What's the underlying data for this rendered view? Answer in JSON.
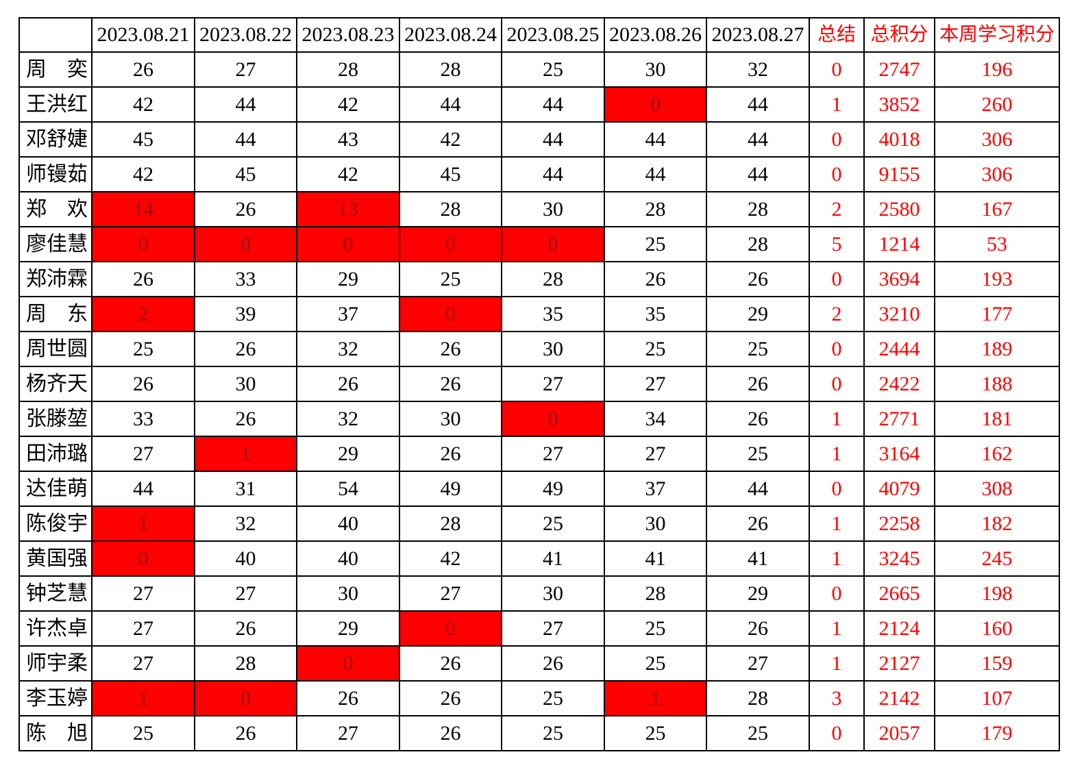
{
  "table": {
    "corner": "",
    "date_headers": [
      "2023.08.21",
      "2023.08.22",
      "2023.08.23",
      "2023.08.24",
      "2023.08.25",
      "2023.08.26",
      "2023.08.27"
    ],
    "summary_header": "总结",
    "total_header": "总积分",
    "week_header": "本周学习积分",
    "rows": [
      {
        "name": "周　奕",
        "daily": [
          26,
          27,
          28,
          28,
          25,
          30,
          32
        ],
        "red": [],
        "summary": 0,
        "total": 2747,
        "week": 196
      },
      {
        "name": "王洪红",
        "daily": [
          42,
          44,
          42,
          44,
          44,
          0,
          44
        ],
        "red": [
          5
        ],
        "summary": 1,
        "total": 3852,
        "week": 260
      },
      {
        "name": "邓舒婕",
        "daily": [
          45,
          44,
          43,
          42,
          44,
          44,
          44
        ],
        "red": [],
        "summary": 0,
        "total": 4018,
        "week": 306
      },
      {
        "name": "师镘茹",
        "daily": [
          42,
          45,
          42,
          45,
          44,
          44,
          44
        ],
        "red": [],
        "summary": 0,
        "total": 9155,
        "week": 306
      },
      {
        "name": "郑　欢",
        "daily": [
          14,
          26,
          13,
          28,
          30,
          28,
          28
        ],
        "red": [
          0,
          2
        ],
        "summary": 2,
        "total": 2580,
        "week": 167
      },
      {
        "name": "廖佳慧",
        "daily": [
          0,
          0,
          0,
          0,
          0,
          25,
          28
        ],
        "red": [
          0,
          1,
          2,
          3,
          4
        ],
        "summary": 5,
        "total": 1214,
        "week": 53
      },
      {
        "name": "郑沛霖",
        "daily": [
          26,
          33,
          29,
          25,
          28,
          26,
          26
        ],
        "red": [],
        "summary": 0,
        "total": 3694,
        "week": 193
      },
      {
        "name": "周　东",
        "daily": [
          2,
          39,
          37,
          0,
          35,
          35,
          29
        ],
        "red": [
          0,
          3
        ],
        "summary": 2,
        "total": 3210,
        "week": 177
      },
      {
        "name": "周世圆",
        "daily": [
          25,
          26,
          32,
          26,
          30,
          25,
          25
        ],
        "red": [],
        "summary": 0,
        "total": 2444,
        "week": 189
      },
      {
        "name": "杨齐天",
        "daily": [
          26,
          30,
          26,
          26,
          27,
          27,
          26
        ],
        "red": [],
        "summary": 0,
        "total": 2422,
        "week": 188
      },
      {
        "name": "张滕堃",
        "daily": [
          33,
          26,
          32,
          30,
          0,
          34,
          26
        ],
        "red": [
          4
        ],
        "summary": 1,
        "total": 2771,
        "week": 181
      },
      {
        "name": "田沛璐",
        "daily": [
          27,
          1,
          29,
          26,
          27,
          27,
          25
        ],
        "red": [
          1
        ],
        "summary": 1,
        "total": 3164,
        "week": 162
      },
      {
        "name": "达佳萌",
        "daily": [
          44,
          31,
          54,
          49,
          49,
          37,
          44
        ],
        "red": [],
        "summary": 0,
        "total": 4079,
        "week": 308
      },
      {
        "name": "陈俊宇",
        "daily": [
          1,
          32,
          40,
          28,
          25,
          30,
          26
        ],
        "red": [
          0
        ],
        "summary": 1,
        "total": 2258,
        "week": 182
      },
      {
        "name": "黄国强",
        "daily": [
          0,
          40,
          40,
          42,
          41,
          41,
          41
        ],
        "red": [
          0
        ],
        "summary": 1,
        "total": 3245,
        "week": 245
      },
      {
        "name": "钟芝慧",
        "daily": [
          27,
          27,
          30,
          27,
          30,
          28,
          29
        ],
        "red": [],
        "summary": 0,
        "total": 2665,
        "week": 198
      },
      {
        "name": "许杰卓",
        "daily": [
          27,
          26,
          29,
          0,
          27,
          25,
          26
        ],
        "red": [
          3
        ],
        "summary": 1,
        "total": 2124,
        "week": 160
      },
      {
        "name": "师宇柔",
        "daily": [
          27,
          28,
          0,
          26,
          26,
          25,
          27
        ],
        "red": [
          2
        ],
        "summary": 1,
        "total": 2127,
        "week": 159
      },
      {
        "name": "李玉婷",
        "daily": [
          1,
          0,
          26,
          26,
          25,
          1,
          28
        ],
        "red": [
          0,
          1,
          5
        ],
        "summary": 3,
        "total": 2142,
        "week": 107
      },
      {
        "name": "陈　旭",
        "daily": [
          25,
          26,
          27,
          26,
          25,
          25,
          25
        ],
        "red": [],
        "summary": 0,
        "total": 2057,
        "week": 179
      }
    ]
  },
  "colors": {
    "highlight_fill": "#FF0000",
    "highlight_cell_text": "#A00000",
    "accent_text": "#FF0000",
    "grid_line": "#000000",
    "value_text": "#000000"
  }
}
